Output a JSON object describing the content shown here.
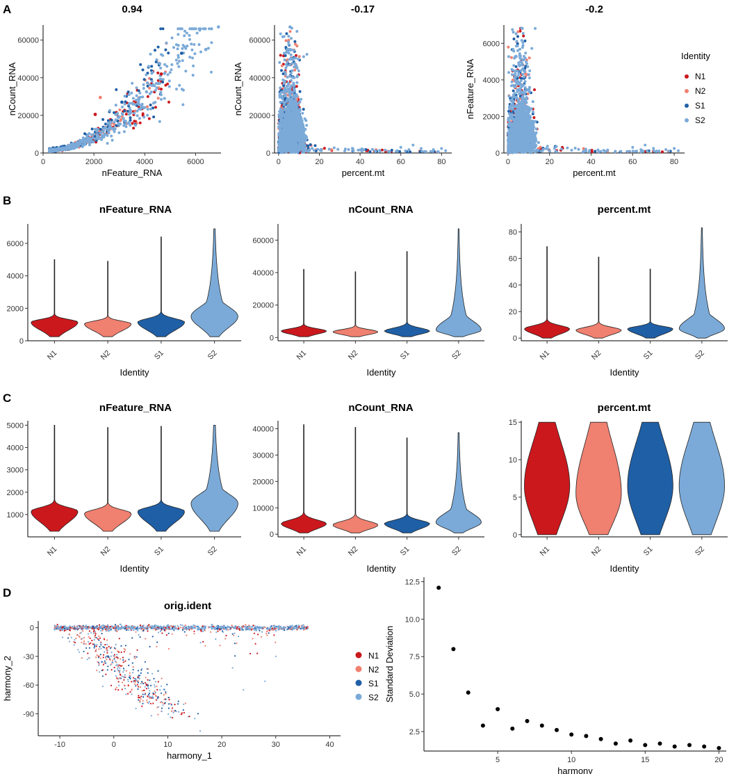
{
  "panel_labels": [
    "A",
    "B",
    "C",
    "D"
  ],
  "groups": [
    "N1",
    "N2",
    "S1",
    "S2"
  ],
  "colors": {
    "N1": "#CB181D",
    "N2": "#F08070",
    "S1": "#1F5FA6",
    "S2": "#7BAAD8"
  },
  "legend_title": "Identity",
  "chart_data": [
    {
      "id": "A1",
      "type": "scatter",
      "title": "0.94",
      "xlabel": "nFeature_RNA",
      "ylabel": "nCount_RNA",
      "xticks": [
        0,
        2000,
        4000,
        6000
      ],
      "yticks": [
        0,
        20000,
        40000,
        60000
      ],
      "xlim": [
        0,
        7000
      ],
      "ylim": [
        0,
        68000
      ],
      "correlation": 0.94,
      "max_point": {
        "x": 6900,
        "y": 67000
      },
      "highlight_points": [
        {
          "group": "N2",
          "x": 2250,
          "y": 29500
        },
        {
          "group": "N1",
          "x": 2050,
          "y": 20500
        },
        {
          "group": "N1",
          "x": 4650,
          "y": 42000
        },
        {
          "group": "S1",
          "x": 5450,
          "y": 53000
        },
        {
          "group": "S1",
          "x": 3100,
          "y": 27000
        },
        {
          "group": "S2",
          "x": 6400,
          "y": 55000
        }
      ]
    },
    {
      "id": "A2",
      "type": "scatter",
      "title": "-0.17",
      "xlabel": "percent.mt",
      "ylabel": "nCount_RNA",
      "xticks": [
        0,
        20,
        40,
        60,
        80
      ],
      "yticks": [
        0,
        20000,
        40000,
        60000
      ],
      "xlim": [
        -2,
        85
      ],
      "ylim": [
        0,
        68000
      ],
      "correlation": -0.17
    },
    {
      "id": "A3",
      "type": "scatter",
      "title": "-0.2",
      "xlabel": "percent.mt",
      "ylabel": "nFeature_RNA",
      "xticks": [
        0,
        20,
        40,
        60,
        80
      ],
      "yticks": [
        0,
        2000,
        4000,
        6000
      ],
      "xlim": [
        -2,
        85
      ],
      "ylim": [
        0,
        7000
      ],
      "correlation": -0.2
    },
    {
      "id": "B1",
      "type": "violin",
      "title": "nFeature_RNA",
      "xlabel": "Identity",
      "ylabel": "",
      "categories": [
        "N1",
        "N2",
        "S1",
        "S2"
      ],
      "yticks": [
        0,
        2000,
        4000,
        6000
      ],
      "ylim": [
        0,
        7200
      ],
      "violins": [
        {
          "min": 250,
          "max": 5000,
          "mode": 1150
        },
        {
          "min": 250,
          "max": 4900,
          "mode": 1050
        },
        {
          "min": 250,
          "max": 6400,
          "mode": 1150
        },
        {
          "min": 250,
          "max": 6900,
          "mode": 1500
        }
      ]
    },
    {
      "id": "B2",
      "type": "violin",
      "title": "nCount_RNA",
      "xlabel": "Identity",
      "ylabel": "",
      "categories": [
        "N1",
        "N2",
        "S1",
        "S2"
      ],
      "yticks": [
        0,
        20000,
        40000,
        60000
      ],
      "ylim": [
        -2000,
        70000
      ],
      "violins": [
        {
          "min": 500,
          "max": 42000,
          "mode": 4000
        },
        {
          "min": 500,
          "max": 40500,
          "mode": 3500
        },
        {
          "min": 500,
          "max": 53000,
          "mode": 4000
        },
        {
          "min": 500,
          "max": 67000,
          "mode": 4500
        }
      ]
    },
    {
      "id": "B3",
      "type": "violin",
      "title": "percent.mt",
      "xlabel": "Identity",
      "ylabel": "",
      "categories": [
        "N1",
        "N2",
        "S1",
        "S2"
      ],
      "yticks": [
        0,
        20,
        40,
        60,
        80
      ],
      "ylim": [
        -2,
        86
      ],
      "violins": [
        {
          "min": 0,
          "max": 69,
          "mode": 7
        },
        {
          "min": 0,
          "max": 61,
          "mode": 6
        },
        {
          "min": 0,
          "max": 52,
          "mode": 7
        },
        {
          "min": 0,
          "max": 83,
          "mode": 7
        }
      ]
    },
    {
      "id": "C1",
      "type": "violin",
      "title": "nFeature_RNA",
      "xlabel": "Identity",
      "ylabel": "",
      "categories": [
        "N1",
        "N2",
        "S1",
        "S2"
      ],
      "yticks": [
        1000,
        2000,
        3000,
        4000,
        5000
      ],
      "ylim": [
        0,
        5200
      ],
      "violins": [
        {
          "min": 250,
          "max": 5000,
          "mode": 1150
        },
        {
          "min": 250,
          "max": 4900,
          "mode": 1050
        },
        {
          "min": 250,
          "max": 4950,
          "mode": 1150
        },
        {
          "min": 250,
          "max": 5000,
          "mode": 1500
        }
      ]
    },
    {
      "id": "C2",
      "type": "violin",
      "title": "nCount_RNA",
      "xlabel": "Identity",
      "ylabel": "",
      "categories": [
        "N1",
        "N2",
        "S1",
        "S2"
      ],
      "yticks": [
        0,
        10000,
        20000,
        30000,
        40000
      ],
      "ylim": [
        -1000,
        43000
      ],
      "violins": [
        {
          "min": 500,
          "max": 41500,
          "mode": 4000
        },
        {
          "min": 500,
          "max": 40500,
          "mode": 3500
        },
        {
          "min": 500,
          "max": 36500,
          "mode": 4000
        },
        {
          "min": 500,
          "max": 38500,
          "mode": 4500
        }
      ]
    },
    {
      "id": "C3",
      "type": "violin",
      "title": "percent.mt",
      "xlabel": "Identity",
      "ylabel": "",
      "categories": [
        "N1",
        "N2",
        "S1",
        "S2"
      ],
      "yticks": [
        0,
        5,
        10,
        15
      ],
      "ylim": [
        -0.3,
        15.2
      ],
      "violins": [
        {
          "min": 0,
          "max": 15,
          "mode": 6.5
        },
        {
          "min": 0,
          "max": 15,
          "mode": 5.5
        },
        {
          "min": 0,
          "max": 15,
          "mode": 6.5
        },
        {
          "min": 0,
          "max": 15,
          "mode": 6.5
        }
      ]
    },
    {
      "id": "D1",
      "type": "scatter",
      "title": "orig.ident",
      "xlabel": "harmony_1",
      "ylabel": "harmony_2",
      "xticks": [
        -10,
        0,
        10,
        20,
        30,
        40
      ],
      "yticks": [
        0,
        -30,
        -60,
        -90
      ],
      "xlim": [
        -14,
        42
      ],
      "ylim": [
        -113,
        7
      ]
    },
    {
      "id": "D2",
      "type": "scatter",
      "title": "",
      "xlabel": "harmony",
      "ylabel": "Standard Deviation",
      "xticks": [
        5,
        10,
        15,
        20
      ],
      "yticks": [
        2.5,
        5.0,
        7.5,
        10.0,
        12.5
      ],
      "ytick_labels": [
        "2.5",
        "5.0",
        "7.5",
        "10.0",
        "12.5"
      ],
      "xlim": [
        0,
        20.5
      ],
      "ylim": [
        1.2,
        12.8
      ],
      "x": [
        1,
        2,
        3,
        4,
        5,
        6,
        7,
        8,
        9,
        10,
        11,
        12,
        13,
        14,
        15,
        16,
        17,
        18,
        19,
        20
      ],
      "y": [
        12.1,
        8.0,
        5.1,
        2.9,
        4.0,
        2.7,
        3.2,
        2.9,
        2.6,
        2.3,
        2.2,
        2.0,
        1.7,
        1.9,
        1.6,
        1.7,
        1.5,
        1.6,
        1.5,
        1.4
      ]
    }
  ]
}
